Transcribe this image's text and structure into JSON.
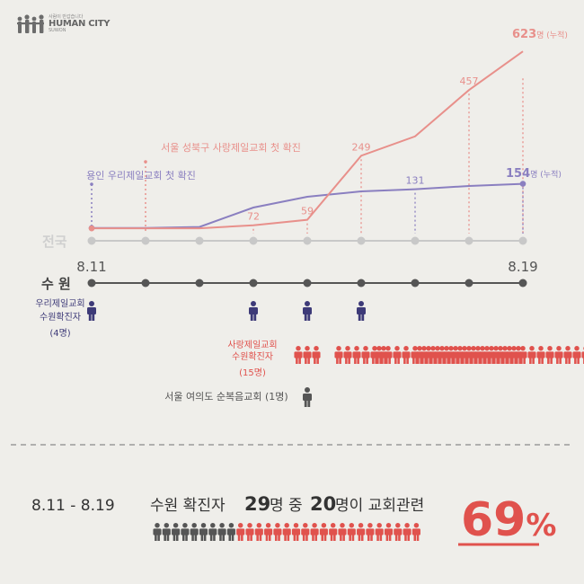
{
  "logo": {
    "slogan": "사람이 반갑습니다",
    "brand": "HUMAN CITY",
    "sub": "SUWON"
  },
  "colors": {
    "purple": "#8a7fc0",
    "pink": "#e8908b",
    "red": "#e0524d",
    "navy": "#3d3a78",
    "grey": "#777777",
    "dark": "#444444"
  },
  "chart_data": {
    "type": "line",
    "x": [
      "8.11",
      "8.12",
      "8.13",
      "8.14",
      "8.15",
      "8.16",
      "8.17",
      "8.18",
      "8.19"
    ],
    "series": [
      {
        "name": "전국",
        "values": [
          1,
          1,
          2,
          20,
          30,
          35,
          37,
          40,
          42
        ]
      },
      {
        "name": "전국",
        "values": [
          1,
          1,
          1,
          5,
          12,
          95,
          120,
          180,
          230
        ]
      }
    ],
    "data_labels": [
      {
        "series": 1,
        "index": 3,
        "text": "72"
      },
      {
        "series": 1,
        "index": 4,
        "text": "59"
      },
      {
        "series": 1,
        "index": 5,
        "text": "249"
      },
      {
        "series": 0,
        "index": 6,
        "text": "131"
      },
      {
        "series": 1,
        "index": 7,
        "text": "457"
      }
    ],
    "end_labels": [
      {
        "series": 1,
        "value": "623",
        "unit": "명 (누적)"
      },
      {
        "series": 0,
        "value": "154",
        "unit": "명 (누적)"
      }
    ],
    "events": [
      {
        "index": 0,
        "text": "용인 우리제일교회 첫 확진",
        "color": "purple"
      },
      {
        "index": 1,
        "text": "서울 성북구 사랑제일교회 첫 확진",
        "color": "pink"
      }
    ],
    "nation_label": "전국",
    "suwon_label": "수 원",
    "start_label": "8.11",
    "end_label": "8.19",
    "suwon_woori": {
      "title": "우리제일교회",
      "sub": "수원확진자",
      "count": "(4명)",
      "days": [
        0,
        3,
        4,
        5
      ]
    },
    "suwon_sarang": {
      "title": "사랑제일교회",
      "sub": "수원확진자",
      "count": "(15명)",
      "cumulative": [
        3,
        6,
        9,
        12,
        15
      ]
    },
    "suwon_other": {
      "text": "서울 여의도 순복음교회 (1명)"
    }
  },
  "summary": {
    "period": "8.11 - 8.19",
    "text1": "수원 확진자",
    "total": "29",
    "text2": "명 중",
    "church": "20",
    "text3": "명이 교회관련",
    "percent_num": "69",
    "percent_sign": "%",
    "people_total": 29,
    "people_church": 20
  }
}
